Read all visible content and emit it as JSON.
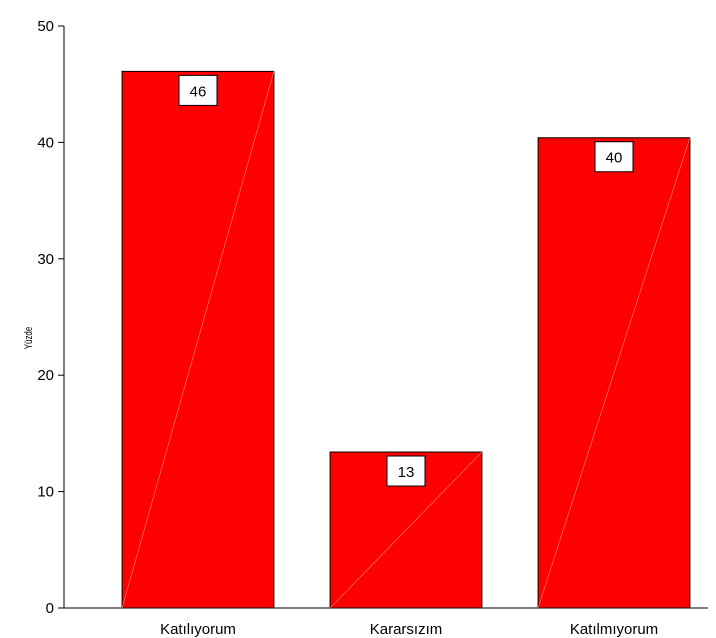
{
  "chart_data": {
    "type": "bar",
    "categories": [
      "Katılıyorum",
      "Kararsızım",
      "Katılmıyorum"
    ],
    "values": [
      46.1,
      13.4,
      40.4
    ],
    "data_labels": [
      "46",
      "13",
      "40"
    ],
    "ylabel": "Yüzde",
    "ylim": [
      0,
      50
    ],
    "y_ticks": [
      "0",
      "10",
      "20",
      "30",
      "40",
      "50"
    ],
    "grid": false,
    "bar_color": "#ff0000"
  }
}
